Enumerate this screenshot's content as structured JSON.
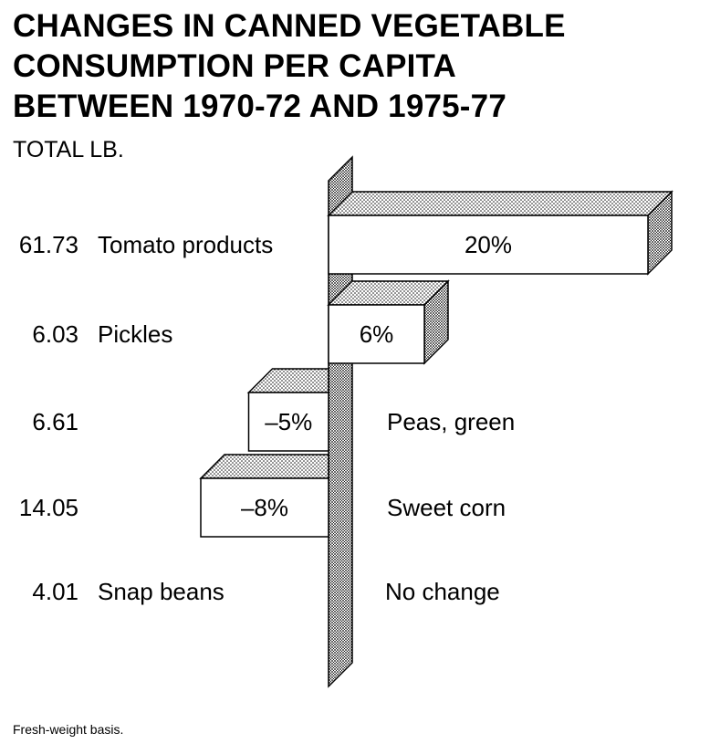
{
  "chart_data": {
    "type": "bar",
    "orientation": "horizontal",
    "title_lines": [
      "CHANGES IN CANNED VEGETABLE",
      "CONSUMPTION PER CAPITA",
      "BETWEEN 1970-72 AND 1975-77"
    ],
    "unit_label": "TOTAL LB.",
    "footnote": "Fresh-weight basis.",
    "categories": [
      "Tomato products",
      "Pickles",
      "Peas, green",
      "Sweet corn",
      "Snap beans"
    ],
    "totals_lb": [
      "61.73",
      "6.03",
      "6.61",
      "14.05",
      "4.01"
    ],
    "values": [
      20,
      6,
      -5,
      -8,
      0
    ],
    "value_labels": [
      "20%",
      "6%",
      "–5%",
      "–8%",
      "No change"
    ],
    "value_unit": "%",
    "style": {
      "bar_fill": "#ffffff",
      "outline": "#000000",
      "pattern_dot": "#000000",
      "background": "#ffffff"
    }
  }
}
